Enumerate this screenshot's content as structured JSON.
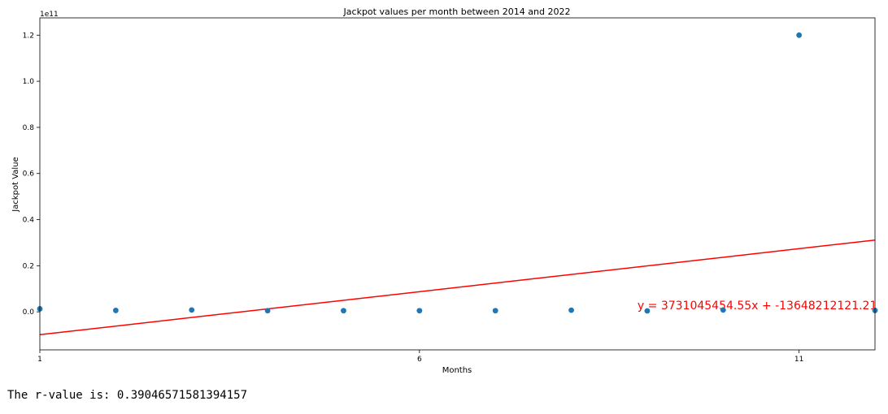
{
  "chart_data": {
    "type": "scatter",
    "title": "Jackpot values per month between 2014 and 2022",
    "xlabel": "Months",
    "ylabel": "Jackpot Value",
    "y_offset_label": "1e11",
    "xlim": [
      1,
      12
    ],
    "ylim": [
      -0.165,
      1.275
    ],
    "x_ticks": [
      1,
      6,
      11
    ],
    "y_ticks": [
      0.0,
      0.2,
      0.4,
      0.6,
      0.8,
      1.0,
      1.2
    ],
    "y_tick_labels": [
      "0.0",
      "0.2",
      "0.4",
      "0.6",
      "0.8",
      "1.0",
      "1.2"
    ],
    "grid": false,
    "points": {
      "x": [
        1,
        2,
        3,
        4,
        5,
        6,
        7,
        8,
        9,
        10,
        11,
        12
      ],
      "y": [
        0.013,
        0.006,
        0.008,
        0.005,
        0.005,
        0.005,
        0.005,
        0.007,
        0.004,
        0.008,
        1.2,
        0.006
      ],
      "color": "#1f77b4"
    },
    "regression": {
      "slope": 3731045454.55,
      "intercept": -13648212121.21,
      "color": "#ff0000",
      "equation_label": "y = 3731045454.55x + -13648212121.21",
      "label_anchor_x": 9.0,
      "label_anchor_y": 0.0
    }
  },
  "output": {
    "r_value_text": "The r-value is: 0.39046571581394157"
  }
}
